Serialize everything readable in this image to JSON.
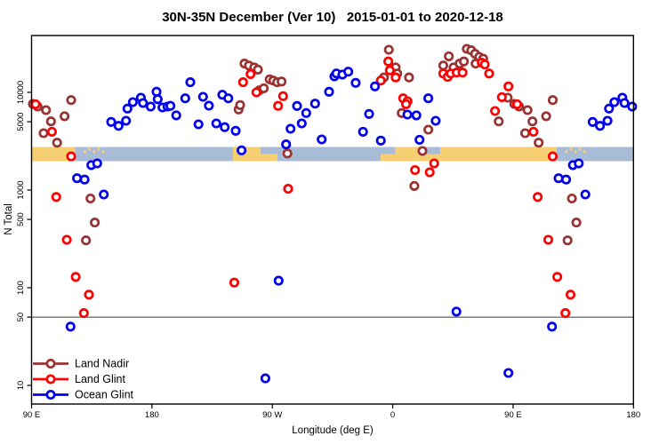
{
  "title": "30N-35N December (Ver 10)   2015-01-01 to 2020-12-18",
  "legend": {
    "position": "bottom-left",
    "items": [
      {
        "label": "Land Nadir",
        "color": "#9a3232",
        "marker": "open-circle-on-line"
      },
      {
        "label": "Land Glint",
        "color": "#ff0000",
        "marker": "open-circle-on-line"
      },
      {
        "label": "Ocean Glint",
        "color": "#0000ee",
        "marker": "open-circle-on-line"
      }
    ]
  },
  "chart_data": {
    "type": "scatter",
    "title": "30N-35N December (Ver 10)   2015-01-01 to 2020-12-18",
    "xlabel": "Longitude (deg E)",
    "ylabel": "N Total",
    "y_scale": "log",
    "ylim": [
      6.5,
      38000
    ],
    "x_axis": {
      "label": "Longitude (deg E)",
      "axis_deg_range": [
        90,
        540
      ],
      "ticks": [
        {
          "axis_deg": 90,
          "label": "90 E"
        },
        {
          "axis_deg": 180,
          "label": "180"
        },
        {
          "axis_deg": 270,
          "label": "90 W"
        },
        {
          "axis_deg": 360,
          "label": "0"
        },
        {
          "axis_deg": 450,
          "label": "90 E"
        },
        {
          "axis_deg": 540,
          "label": "180"
        }
      ],
      "wrap_duplicate_max_lon": 180,
      "wrap_offset_deg": 360
    },
    "y_axis": {
      "label": "N Total",
      "ticks": [
        10,
        50,
        100,
        500,
        1000,
        5000,
        10000
      ]
    },
    "reference_line_y": 50,
    "land_ocean_band": {
      "center_n_value": 2300,
      "land_color": "#f6cf72",
      "ocean_color": "#a8bcd8",
      "rows": [
        {
          "name": "north-row",
          "segments": [
            {
              "start": 90,
              "end": 122.5,
              "type": "land"
            },
            {
              "start": 122.5,
              "end": 240.6,
              "type": "ocean"
            },
            {
              "start": 129,
              "end": 144,
              "type": "land-speckle"
            },
            {
              "start": 240.6,
              "end": 261,
              "type": "land"
            },
            {
              "start": 261,
              "end": 362,
              "type": "ocean"
            },
            {
              "start": 362,
              "end": 382,
              "type": "land"
            },
            {
              "start": 382,
              "end": 395.5,
              "type": "ocean"
            },
            {
              "start": 395.5,
              "end": 482.5,
              "type": "land"
            },
            {
              "start": 482.5,
              "end": 540,
              "type": "ocean"
            },
            {
              "start": 489,
              "end": 504,
              "type": "land-speckle"
            }
          ]
        },
        {
          "name": "south-row",
          "segments": [
            {
              "start": 90,
              "end": 122.5,
              "type": "land"
            },
            {
              "start": 122.5,
              "end": 240.6,
              "type": "ocean"
            },
            {
              "start": 240.6,
              "end": 273.8,
              "type": "land"
            },
            {
              "start": 273.8,
              "end": 351,
              "type": "ocean"
            },
            {
              "start": 351,
              "end": 482.5,
              "type": "land"
            },
            {
              "start": 482.5,
              "end": 540,
              "type": "ocean"
            }
          ]
        }
      ]
    },
    "series": [
      {
        "name": "Land Nadir",
        "color": "#9a3232",
        "points": [
          [
            91,
            7600
          ],
          [
            94.5,
            7160
          ],
          [
            100.8,
            6580
          ],
          [
            104.5,
            5040
          ],
          [
            114.7,
            5690
          ],
          [
            99,
            3820
          ],
          [
            109.1,
            3050
          ],
          [
            119.6,
            8330
          ],
          [
            134,
            820
          ],
          [
            137.3,
            465
          ],
          [
            130.7,
            305
          ],
          [
            244.8,
            6670
          ],
          [
            245.9,
            7410
          ],
          [
            249.2,
            19700
          ],
          [
            252.5,
            18800
          ],
          [
            256.5,
            18000
          ],
          [
            259.2,
            17100
          ],
          [
            260.3,
            10500
          ],
          [
            263.6,
            11000
          ],
          [
            268,
            13600
          ],
          [
            270.7,
            13200
          ],
          [
            273.6,
            12700
          ],
          [
            276.9,
            12900
          ],
          [
            281.3,
            2370
          ],
          [
            353.4,
            14200
          ],
          [
            357.1,
            27300
          ],
          [
            362.2,
            18000
          ],
          [
            363.4,
            15600
          ],
          [
            372.2,
            14200
          ],
          [
            366.7,
            6140
          ],
          [
            376.2,
            1100
          ],
          [
            382.2,
            2510
          ],
          [
            386.6,
            4150
          ],
          [
            397.8,
            18800
          ],
          [
            402,
            23400
          ],
          [
            405.5,
            18000
          ],
          [
            410,
            19700
          ],
          [
            413.2,
            20700
          ],
          [
            415.4,
            27900
          ],
          [
            418.7,
            26900
          ],
          [
            421.6,
            24800
          ],
          [
            424.7,
            23100
          ],
          [
            422,
            19700
          ],
          [
            427.6,
            22100
          ],
          [
            439.3,
            5040
          ],
          [
            446,
            8820
          ]
        ]
      },
      {
        "name": "Land Glint",
        "color": "#ff0000",
        "points": [
          [
            93,
            7560
          ],
          [
            105.2,
            3950
          ],
          [
            119.6,
            2210
          ],
          [
            108.4,
            850
          ],
          [
            116.3,
            310
          ],
          [
            123,
            129
          ],
          [
            132.9,
            85
          ],
          [
            129.1,
            55
          ],
          [
            241.5,
            113
          ],
          [
            248.1,
            12700
          ],
          [
            253.7,
            15400
          ],
          [
            258.1,
            10000
          ],
          [
            274.3,
            7270
          ],
          [
            278,
            9140
          ],
          [
            281.8,
            1030
          ],
          [
            351.1,
            13200
          ],
          [
            356.7,
            20700
          ],
          [
            357.8,
            16800
          ],
          [
            362.2,
            14200
          ],
          [
            367.8,
            8690
          ],
          [
            371.1,
            8110
          ],
          [
            370,
            7570
          ],
          [
            376.7,
            1600
          ],
          [
            387.7,
            1520
          ],
          [
            391,
            1875
          ],
          [
            397.8,
            15600
          ],
          [
            401.1,
            14400
          ],
          [
            403.4,
            15600
          ],
          [
            407.8,
            15960
          ],
          [
            412.2,
            15960
          ],
          [
            426.6,
            20100
          ],
          [
            428.8,
            19300
          ],
          [
            432.1,
            15600
          ],
          [
            436.5,
            6440
          ],
          [
            441.6,
            8930
          ],
          [
            446.5,
            11500
          ]
        ]
      },
      {
        "name": "Ocean Glint",
        "color": "#0000ee",
        "points": [
          [
            119.1,
            40
          ],
          [
            124,
            1320
          ],
          [
            129.6,
            1280
          ],
          [
            134.7,
            1800
          ],
          [
            139.1,
            1875
          ],
          [
            144,
            900
          ],
          [
            149.5,
            4980
          ],
          [
            155,
            4540
          ],
          [
            160.6,
            5120
          ],
          [
            161.7,
            6820
          ],
          [
            165.7,
            7940
          ],
          [
            171.7,
            8820
          ],
          [
            173.3,
            7780
          ],
          [
            179,
            7160
          ],
          [
            183.4,
            10150
          ],
          [
            184.3,
            8510
          ],
          [
            187.9,
            7000
          ],
          [
            191.6,
            7160
          ],
          [
            193.8,
            7270
          ],
          [
            198.2,
            5810
          ],
          [
            204.9,
            8690
          ],
          [
            208.7,
            12700
          ],
          [
            214.8,
            4710
          ],
          [
            218.2,
            9010
          ],
          [
            222.6,
            7310
          ],
          [
            228.1,
            4810
          ],
          [
            232.6,
            9460
          ],
          [
            234.4,
            4400
          ],
          [
            237.1,
            8690
          ],
          [
            242.6,
            4040
          ],
          [
            247,
            2550
          ],
          [
            264.8,
            11.8
          ],
          [
            274.7,
            118
          ],
          [
            280.3,
            2930
          ],
          [
            283.6,
            4240
          ],
          [
            288.5,
            7260
          ],
          [
            292,
            4810
          ],
          [
            295.3,
            6140
          ],
          [
            302,
            7670
          ],
          [
            306.9,
            3300
          ],
          [
            312.4,
            10150
          ],
          [
            316.4,
            14580
          ],
          [
            317.9,
            15630
          ],
          [
            322.4,
            15200
          ],
          [
            326.8,
            16290
          ],
          [
            332.3,
            12500
          ],
          [
            337.8,
            3950
          ],
          [
            342.3,
            6010
          ],
          [
            346.7,
            11510
          ],
          [
            351.1,
            3210
          ],
          [
            371,
            5930
          ],
          [
            377.7,
            5810
          ],
          [
            380,
            3270
          ],
          [
            386.6,
            8690
          ],
          [
            392.1,
            5120
          ],
          [
            407.6,
            57
          ],
          [
            446.5,
            13.4
          ]
        ]
      }
    ]
  }
}
